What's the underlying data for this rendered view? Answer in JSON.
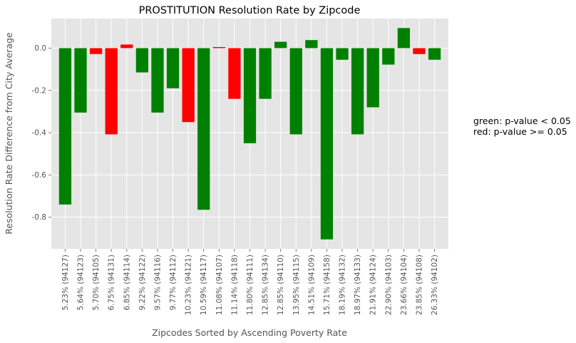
{
  "chart_data": {
    "type": "bar",
    "title": "PROSTITUTION Resolution Rate by Zipcode",
    "xlabel": "Zipcodes Sorted by Ascending Poverty Rate",
    "ylabel": "Resolution Rate Difference from City Average",
    "ylim": [
      -0.95,
      0.14
    ],
    "yticks": [
      0.0,
      -0.2,
      -0.4,
      -0.6,
      -0.8
    ],
    "ytick_labels": [
      "0.0",
      "-0.2",
      "-0.4",
      "-0.6",
      "-0.8"
    ],
    "grid": true,
    "categories": [
      "5.23% (94127)",
      "5.64% (94123)",
      "5.70% (94105)",
      "6.75% (94131)",
      "6.85% (94114)",
      "9.22% (94122)",
      "9.57% (94116)",
      "9.77% (94112)",
      "10.23% (94121)",
      "10.59% (94117)",
      "11.08% (94107)",
      "11.14% (94118)",
      "11.80% (94111)",
      "12.85% (94134)",
      "12.85% (94110)",
      "13.95% (94115)",
      "14.51% (94109)",
      "15.71% (94158)",
      "18.19% (94132)",
      "18.97% (94133)",
      "21.91% (94124)",
      "22.90% (94103)",
      "23.66% (94104)",
      "23.85% (94108)",
      "26.33% (94102)"
    ],
    "values": [
      -0.74,
      -0.305,
      -0.028,
      -0.408,
      0.017,
      -0.115,
      -0.305,
      -0.19,
      -0.35,
      -0.765,
      0.005,
      -0.24,
      -0.45,
      -0.24,
      0.03,
      -0.408,
      0.038,
      -0.905,
      -0.055,
      -0.408,
      -0.28,
      -0.078,
      0.095,
      -0.028,
      -0.055
    ],
    "bar_colors": [
      "green",
      "green",
      "red",
      "red",
      "red",
      "green",
      "green",
      "green",
      "red",
      "green",
      "red",
      "red",
      "green",
      "green",
      "green",
      "green",
      "green",
      "green",
      "green",
      "green",
      "green",
      "green",
      "green",
      "red",
      "green"
    ],
    "color_map": {
      "green": "#008000",
      "red": "#ff0000"
    },
    "annotations": [
      "green: p-value < 0.05",
      "red: p-value >= 0.05"
    ]
  }
}
